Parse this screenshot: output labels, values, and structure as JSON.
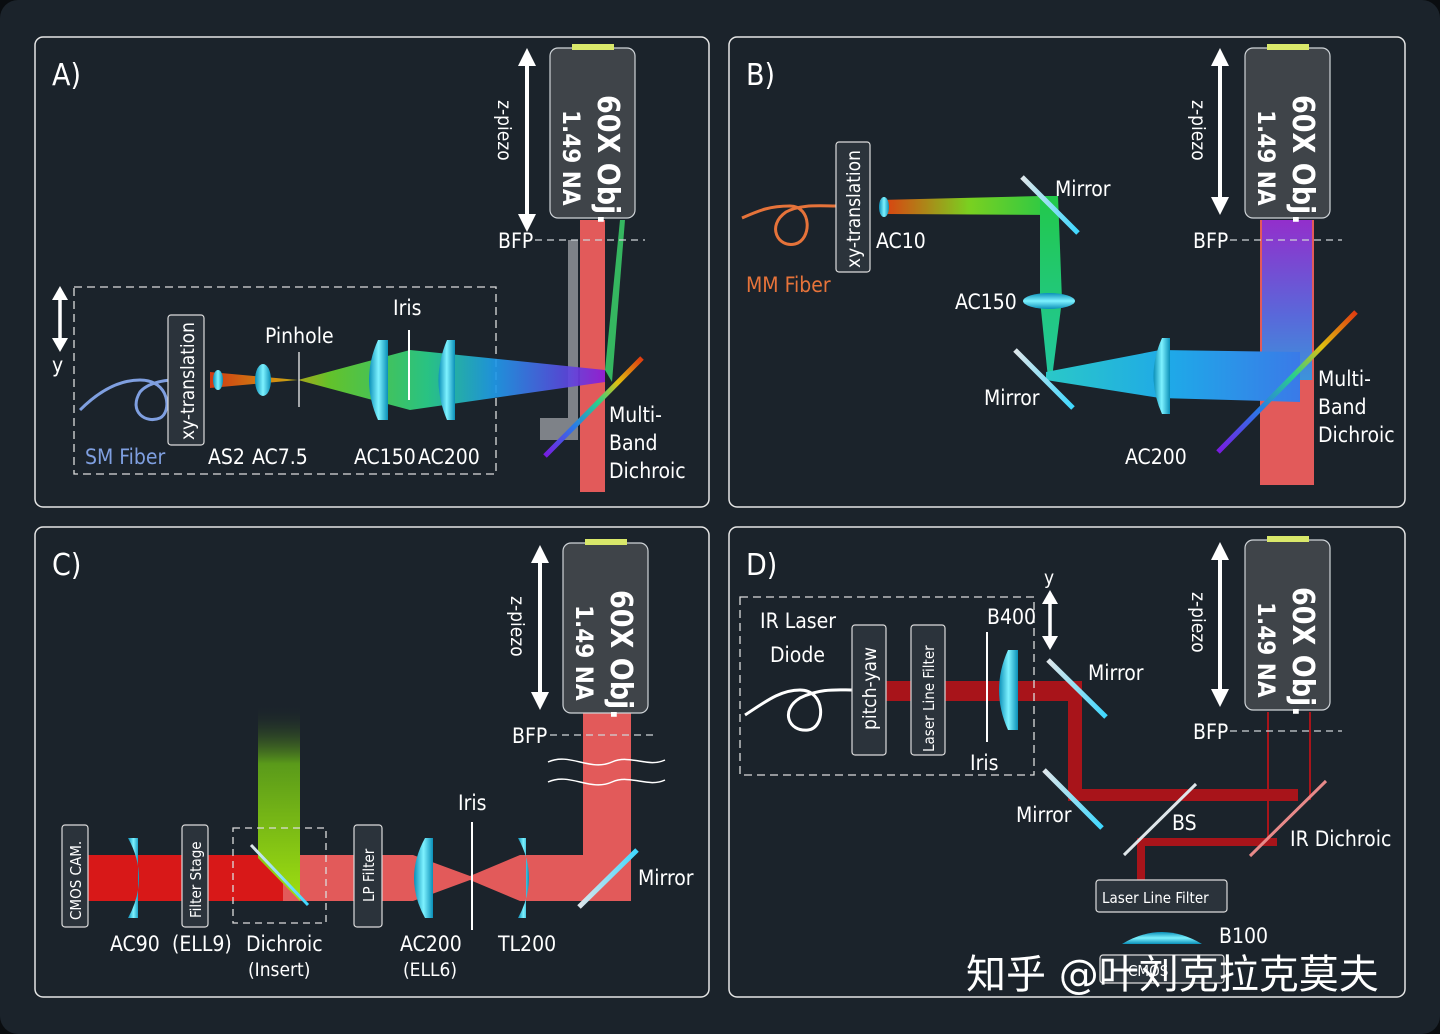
{
  "panels": {
    "a": {
      "letter": "A)",
      "zpiezo": "z-piezo",
      "objective": {
        "line1": "60X Obj.",
        "line2": "1.49 NA"
      },
      "bfp": "BFP",
      "y": "y",
      "xy_translation": "xy-translation",
      "pinhole": "Pinhole",
      "iris": "Iris",
      "sm_fiber": "SM Fiber",
      "as2": "AS2",
      "ac75": "AC7.5",
      "ac150": "AC150",
      "ac200": "AC200",
      "dichroic": [
        "Multi-",
        "Band",
        "Dichroic"
      ]
    },
    "b": {
      "letter": "B)",
      "zpiezo": "z-piezo",
      "objective": {
        "line1": "60X Obj.",
        "line2": "1.49 NA"
      },
      "bfp": "BFP",
      "xy_translation": "xy-translation",
      "ac10": "AC10",
      "mm_fiber": "MM Fiber",
      "mirror_top": "Mirror",
      "ac150": "AC150",
      "mirror_bottom": "Mirror",
      "ac200": "AC200",
      "dichroic": [
        "Multi-",
        "Band",
        "Dichroic"
      ]
    },
    "c": {
      "letter": "C)",
      "zpiezo": "z-piezo",
      "objective": {
        "line1": "60X Obj.",
        "line2": "1.49 NA"
      },
      "bfp": "BFP",
      "cmos": "CMOS CAM.",
      "ac90": "AC90",
      "filter_stage": "Filter Stage",
      "ell9": "(ELL9)",
      "dichroic": "Dichroic",
      "insert": "(Insert)",
      "lp_filter": "LP Filter",
      "ac200": "AC200",
      "ell6": "(ELL6)",
      "iris": "Iris",
      "tl200": "TL200",
      "mirror": "Mirror"
    },
    "d": {
      "letter": "D)",
      "zpiezo": "z-piezo",
      "objective": {
        "line1": "60X Obj.",
        "line2": "1.49 NA"
      },
      "bfp": "BFP",
      "ir_laser": [
        "IR Laser",
        "Diode"
      ],
      "pitch_yaw": "pitch-yaw",
      "laser_line_filter_v": "Laser Line Filter",
      "b400": "B400",
      "y": "y",
      "iris": "Iris",
      "mirror_top": "Mirror",
      "mirror_bottom": "Mirror",
      "bs": "BS",
      "ir_dichroic": "IR Dichroic",
      "laser_line_filter_h": "Laser Line Filter",
      "b100": "B100",
      "cmos": "CMOS"
    }
  },
  "watermark": "知乎 @叶刘克拉克莫夫",
  "colors": {
    "background": "#1b232b",
    "panel_border": "#e6e6e6",
    "objective": "#3f4449",
    "beam_red": "#e25a5a",
    "deep_red": "#c0111b",
    "lens_cyan": "#2fe0ff",
    "sm_fiber": "#7f9fe0",
    "mm_fiber": "#e6733a"
  }
}
